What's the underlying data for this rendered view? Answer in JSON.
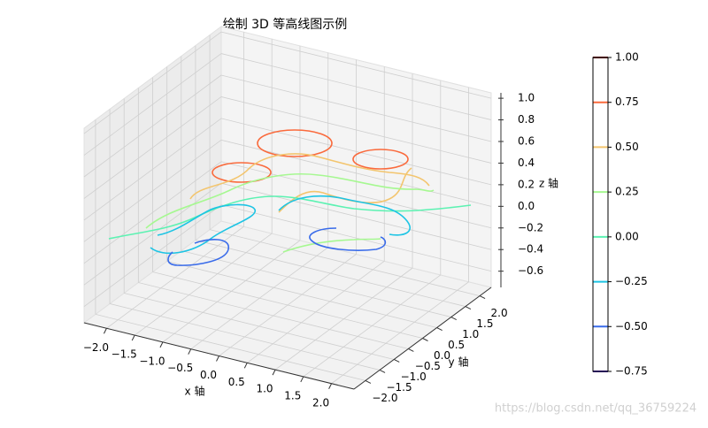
{
  "chart_data": {
    "type": "contour3d",
    "title": "绘制 3D 等高线图示例",
    "xlabel": "x 轴",
    "ylabel": "y 轴",
    "zlabel": "z 轴",
    "xlim": [
      -2.4,
      2.4
    ],
    "ylim": [
      -2.4,
      2.4
    ],
    "zlim": [
      -0.75,
      1.05
    ],
    "xticks": [
      {
        "value": -2.0,
        "label": "−2.0"
      },
      {
        "value": -1.5,
        "label": "−1.5"
      },
      {
        "value": -1.0,
        "label": "−1.0"
      },
      {
        "value": -0.5,
        "label": "−0.5"
      },
      {
        "value": 0,
        "label": "0.0"
      },
      0.5,
      {
        "value": 1.0,
        "label": "1.0"
      },
      1.5,
      {
        "value": 2.0,
        "label": "2.0"
      }
    ],
    "yticks": [
      {
        "value": -2.0,
        "label": "−2.0"
      },
      {
        "value": -1.5,
        "label": "−1.5"
      },
      {
        "value": -1.0,
        "label": "−1.0"
      },
      {
        "value": -0.5,
        "label": "−0.5"
      },
      {
        "value": 0,
        "label": "0.0"
      },
      0.5,
      {
        "value": 1.0,
        "label": "1.0"
      },
      1.5,
      {
        "value": 2.0,
        "label": "2.0"
      }
    ],
    "zticks": [
      {
        "value": -0.6,
        "label": "−0.6"
      },
      {
        "value": -0.4,
        "label": "−0.4"
      },
      {
        "value": -0.2,
        "label": "−0.2"
      },
      {
        "value": 0,
        "label": "0.0"
      },
      0.2,
      0.4,
      0.6,
      0.8,
      {
        "value": 1.0,
        "label": "1.0"
      }
    ],
    "levels": [
      -0.75,
      -0.5,
      -0.25,
      0,
      0.25,
      0.5,
      0.75,
      1.0
    ],
    "level_colors": [
      "#4b10ad",
      "#3a6cea",
      "#1dc4e4",
      "#5cf2b2",
      "#a6f891",
      "#f3c56e",
      "#fa6a3c",
      "#800000"
    ],
    "colorbar_lim": [
      -0.75,
      1.0
    ],
    "colorbar_ticks": [
      {
        "value": -0.75,
        "label": "−0.75"
      },
      {
        "value": -0.5,
        "label": "−0.50"
      },
      {
        "value": -0.25,
        "label": "−0.25"
      },
      {
        "value": 0,
        "label": "0.00"
      },
      0.25,
      {
        "value": 0.5,
        "label": "0.50"
      },
      0.75,
      {
        "value": 1.0,
        "label": "1.00"
      }
    ],
    "grid": true
  },
  "watermark": "https://blog.csdn.net/qq_36759224"
}
